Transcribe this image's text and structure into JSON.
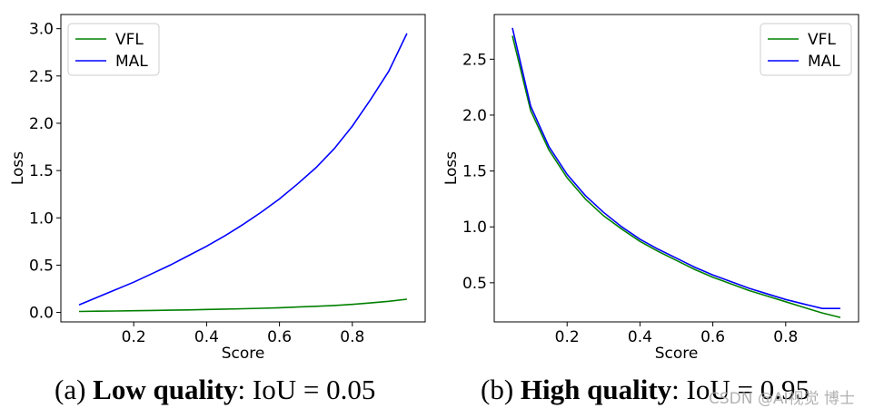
{
  "chart_data": [
    {
      "type": "line",
      "caption": {
        "prefix": "(a) ",
        "bold": "Low quality",
        "suffix": ": IoU = 0.05"
      },
      "xlabel": "Score",
      "ylabel": "Loss",
      "xlim": [
        0.0,
        1.0
      ],
      "ylim": [
        -0.1,
        3.15
      ],
      "xticks": [
        0.2,
        0.4,
        0.6,
        0.8
      ],
      "xtick_labels": [
        "0.2",
        "0.4",
        "0.6",
        "0.8"
      ],
      "yticks": [
        0.0,
        0.5,
        1.0,
        1.5,
        2.0,
        2.5,
        3.0
      ],
      "ytick_labels": [
        "0.0",
        "0.5",
        "1.0",
        "1.5",
        "2.0",
        "2.5",
        "3.0"
      ],
      "legend_position": "top-left",
      "series": [
        {
          "name": "VFL",
          "color": "#008000",
          "x": [
            0.05,
            0.1,
            0.15,
            0.2,
            0.25,
            0.3,
            0.35,
            0.4,
            0.45,
            0.5,
            0.55,
            0.6,
            0.65,
            0.7,
            0.75,
            0.8,
            0.85,
            0.9,
            0.95
          ],
          "y": [
            0.01,
            0.013,
            0.015,
            0.018,
            0.021,
            0.024,
            0.027,
            0.031,
            0.035,
            0.039,
            0.044,
            0.05,
            0.057,
            0.065,
            0.074,
            0.085,
            0.1,
            0.118,
            0.14
          ]
        },
        {
          "name": "MAL",
          "color": "#0000ff",
          "x": [
            0.05,
            0.1,
            0.15,
            0.2,
            0.25,
            0.3,
            0.35,
            0.4,
            0.45,
            0.5,
            0.55,
            0.6,
            0.65,
            0.7,
            0.75,
            0.8,
            0.85,
            0.9,
            0.95
          ],
          "y": [
            0.08,
            0.16,
            0.24,
            0.32,
            0.41,
            0.5,
            0.6,
            0.7,
            0.81,
            0.93,
            1.06,
            1.2,
            1.36,
            1.53,
            1.73,
            1.97,
            2.25,
            2.55,
            2.95
          ]
        }
      ]
    },
    {
      "type": "line",
      "caption": {
        "prefix": "(b) ",
        "bold": "High quality",
        "suffix": ": IoU = 0.95"
      },
      "xlabel": "Score",
      "ylabel": "Loss",
      "xlim": [
        0.0,
        1.0
      ],
      "ylim": [
        0.15,
        2.9
      ],
      "xticks": [
        0.2,
        0.4,
        0.6,
        0.8
      ],
      "xtick_labels": [
        "0.2",
        "0.4",
        "0.6",
        "0.8"
      ],
      "yticks": [
        0.5,
        1.0,
        1.5,
        2.0,
        2.5
      ],
      "ytick_labels": [
        "0.5",
        "1.0",
        "1.5",
        "2.0",
        "2.5"
      ],
      "legend_position": "top-right",
      "series": [
        {
          "name": "VFL",
          "color": "#008000",
          "x": [
            0.05,
            0.1,
            0.15,
            0.2,
            0.25,
            0.3,
            0.35,
            0.4,
            0.45,
            0.5,
            0.55,
            0.6,
            0.65,
            0.7,
            0.75,
            0.8,
            0.85,
            0.9,
            0.95
          ],
          "y": [
            2.71,
            2.04,
            1.69,
            1.44,
            1.25,
            1.1,
            0.98,
            0.87,
            0.78,
            0.7,
            0.62,
            0.55,
            0.49,
            0.43,
            0.38,
            0.33,
            0.28,
            0.23,
            0.19
          ]
        },
        {
          "name": "MAL",
          "color": "#0000ff",
          "x": [
            0.05,
            0.1,
            0.15,
            0.2,
            0.25,
            0.3,
            0.35,
            0.4,
            0.45,
            0.5,
            0.55,
            0.6,
            0.65,
            0.7,
            0.75,
            0.8,
            0.85,
            0.9,
            0.95
          ],
          "y": [
            2.78,
            2.08,
            1.72,
            1.47,
            1.28,
            1.13,
            1.0,
            0.89,
            0.8,
            0.72,
            0.64,
            0.57,
            0.51,
            0.45,
            0.4,
            0.35,
            0.31,
            0.27,
            0.27
          ]
        }
      ]
    }
  ],
  "watermark": "CSDN @AI视觉 博士"
}
